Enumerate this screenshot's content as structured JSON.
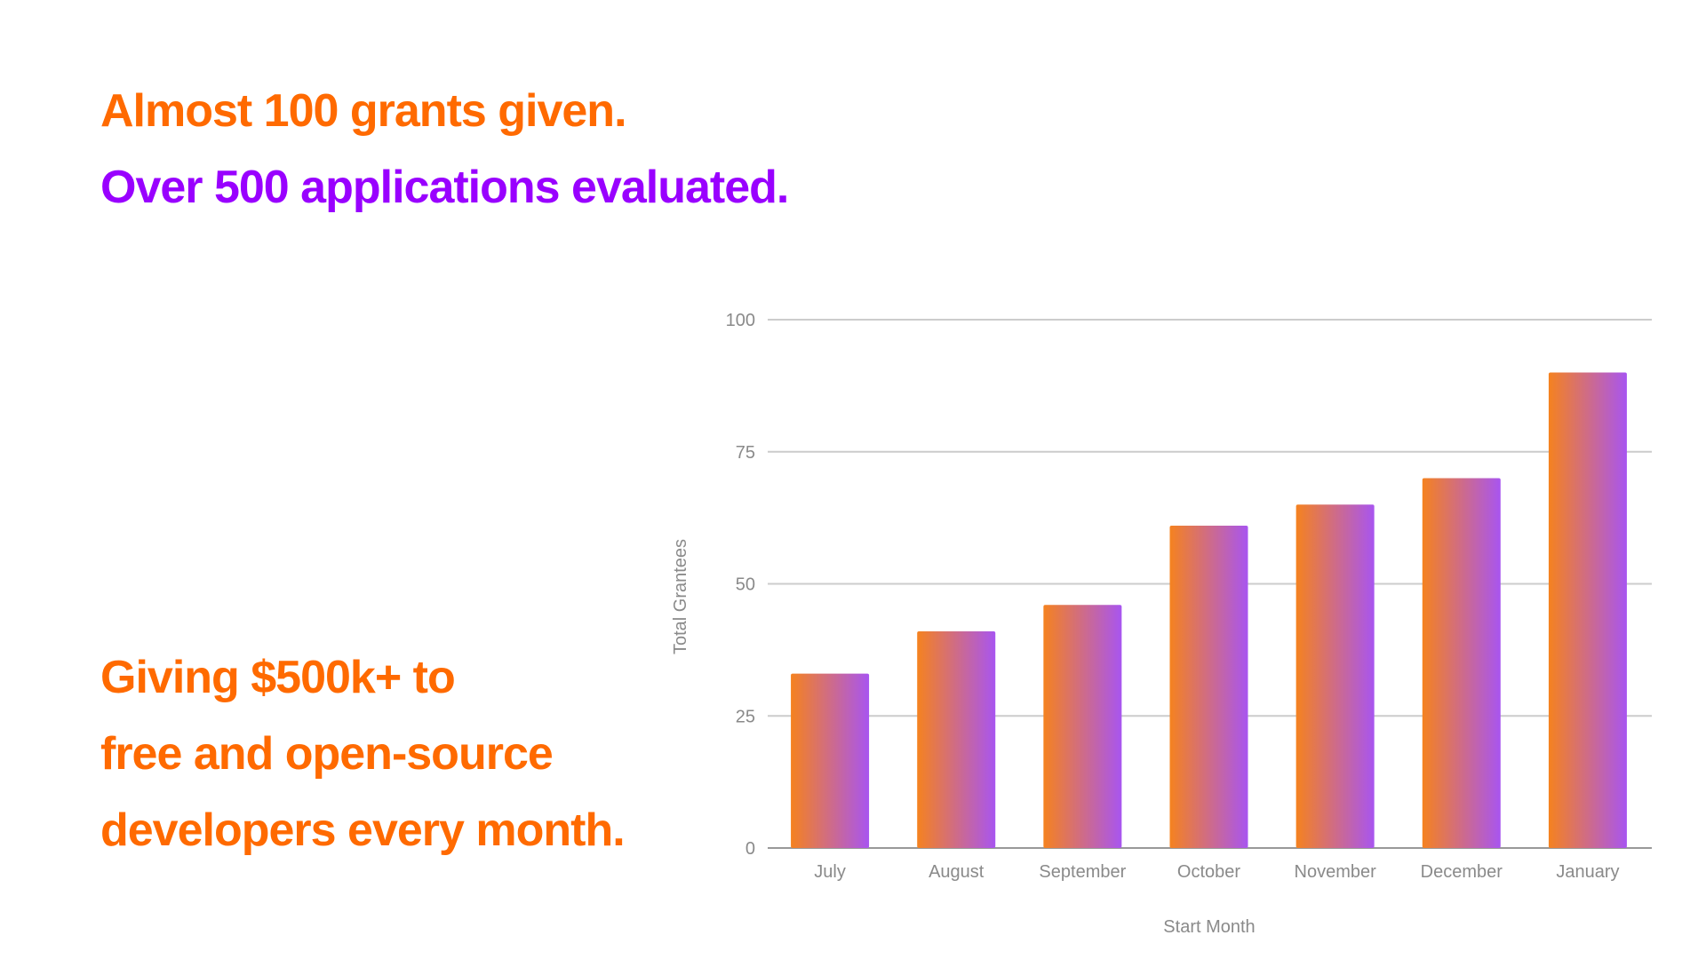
{
  "headlines": {
    "line1": "Almost 100 grants given.",
    "line2": "Over 500 applications evaluated.",
    "bottom": [
      "Giving $500k+ to",
      "free and open-source",
      "developers every month."
    ]
  },
  "colors": {
    "orange": "#FF6A00",
    "purple": "#9900FF",
    "bar_start": "#F5821F",
    "bar_end": "#A855F0"
  },
  "chart_data": {
    "type": "bar",
    "categories": [
      "July",
      "August",
      "September",
      "October",
      "November",
      "December",
      "January"
    ],
    "values": [
      33,
      41,
      46,
      61,
      65,
      70,
      90
    ],
    "xlabel": "Start Month",
    "ylabel": "Total Grantees",
    "ylim": [
      0,
      100
    ],
    "yticks": [
      0,
      25,
      50,
      75,
      100
    ],
    "grid": true
  }
}
